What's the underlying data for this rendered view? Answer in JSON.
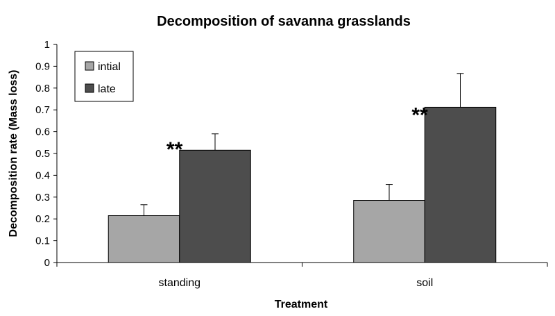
{
  "chart_data": {
    "type": "bar",
    "title": "Decomposition of savanna grasslands",
    "xlabel": "Treatment",
    "ylabel": "Decomposition rate (Mass loss)",
    "categories": [
      "standing",
      "soil"
    ],
    "series": [
      {
        "name": "intial",
        "values": [
          0.215,
          0.285
        ],
        "errors": [
          0.05,
          0.073
        ],
        "color": "#a6a6a6"
      },
      {
        "name": "late",
        "values": [
          0.515,
          0.712
        ],
        "errors": [
          0.075,
          0.155
        ],
        "color": "#4d4d4d"
      }
    ],
    "yticks": [
      "0",
      "0.1",
      "0.2",
      "0.3",
      "0.4",
      "0.5",
      "0.6",
      "0.7",
      "0.8",
      "0.9",
      "1"
    ],
    "ylim": [
      0,
      1
    ],
    "grid": false,
    "legend_position": "top-left",
    "annotations": [
      "**",
      "**"
    ]
  }
}
